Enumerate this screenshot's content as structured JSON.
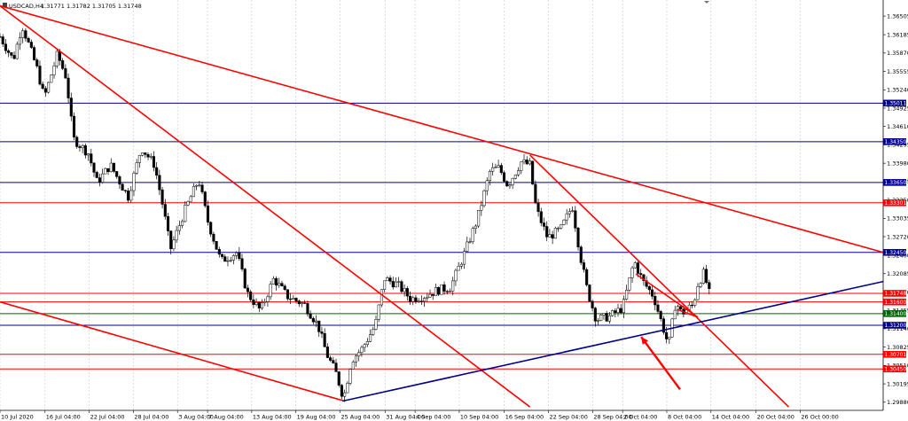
{
  "window": {
    "title": "USDCAD,H4",
    "quote": "1.31771 1.31782 1.31705 1.31748"
  },
  "chart_data": {
    "type": "candlestick",
    "symbol": "USDCAD",
    "timeframe": "H4",
    "ylim": [
      1.2974,
      1.3678
    ],
    "y_ticks": [
      "1.36505",
      "1.36185",
      "1.35870",
      "1.35555",
      "1.35240",
      "1.34925",
      "1.34610",
      "1.34295",
      "1.33980",
      "1.33665",
      "1.33350",
      "1.33035",
      "1.32720",
      "1.32400",
      "1.32085",
      "1.31770",
      "1.31455",
      "1.31140",
      "1.30825",
      "1.30510",
      "1.30195",
      "1.29880"
    ],
    "x_ticks": [
      {
        "label": "10 Jul 2020",
        "pos": 0.0
      },
      {
        "label": "16 Jul 04:00",
        "pos": 0.051
      },
      {
        "label": "22 Jul 04:00",
        "pos": 0.101
      },
      {
        "label": "28 Jul 04:00",
        "pos": 0.151
      },
      {
        "label": "3 Aug 04:00",
        "pos": 0.201
      },
      {
        "label": "7 Aug 04:00",
        "pos": 0.235
      },
      {
        "label": "13 Aug 04:00",
        "pos": 0.285
      },
      {
        "label": "19 Aug 04:00",
        "pos": 0.335
      },
      {
        "label": "25 Aug 04:00",
        "pos": 0.385
      },
      {
        "label": "31 Aug 04:00",
        "pos": 0.436
      },
      {
        "label": "4 Sep 04:00",
        "pos": 0.47
      },
      {
        "label": "10 Sep 04:00",
        "pos": 0.52
      },
      {
        "label": "16 Sep 04:00",
        "pos": 0.571
      },
      {
        "label": "22 Sep 04:00",
        "pos": 0.621
      },
      {
        "label": "28 Sep 04:00",
        "pos": 0.671
      },
      {
        "label": "2 Oct 04:00",
        "pos": 0.705
      },
      {
        "label": "8 Oct 04:00",
        "pos": 0.755
      },
      {
        "label": "14 Oct 04:00",
        "pos": 0.805
      },
      {
        "label": "20 Oct 04:00",
        "pos": 0.856
      },
      {
        "label": "26 Oct 00:00",
        "pos": 0.906
      }
    ],
    "horizontal_levels": [
      {
        "value": 1.35011,
        "label": "1.35011",
        "color": "#00008b"
      },
      {
        "value": 1.3435,
        "label": "1.34350",
        "color": "#00008b"
      },
      {
        "value": 1.3365,
        "label": "1.33650",
        "color": "#00008b"
      },
      {
        "value": 1.33301,
        "label": "1.33301",
        "color": "#ff0000"
      },
      {
        "value": 1.3245,
        "label": "1.32450",
        "color": "#00008b"
      },
      {
        "value": 1.31748,
        "label": "1.31748",
        "color": "#ff0000"
      },
      {
        "value": 1.316,
        "label": "1.31600",
        "color": "#ff0000"
      },
      {
        "value": 1.314,
        "label": "1.31400",
        "color": "#006400"
      },
      {
        "value": 1.312,
        "label": "1.31200",
        "color": "#00008b"
      },
      {
        "value": 1.30701,
        "label": "1.30701",
        "color": "#ff0000"
      },
      {
        "value": 1.3045,
        "label": "1.30450",
        "color": "#ff0000"
      }
    ],
    "trend_lines": [
      {
        "color": "#ff0000",
        "from": {
          "x": 0.0,
          "y": 1.3668
        },
        "to": {
          "x": 1.0,
          "y": 1.3245
        }
      },
      {
        "color": "#ff0000",
        "from": {
          "x": 0.0,
          "y": 1.3668
        },
        "to": {
          "x": 0.6,
          "y": 1.298
        }
      },
      {
        "color": "#ff0000",
        "from": {
          "x": 0.0,
          "y": 1.316
        },
        "to": {
          "x": 0.39,
          "y": 1.299
        }
      },
      {
        "color": "#ff0000",
        "from": {
          "x": 0.6,
          "y": 1.3412
        },
        "to": {
          "x": 0.893,
          "y": 1.298
        }
      },
      {
        "color": "#00008b",
        "from": {
          "x": 0.388,
          "y": 1.299
        },
        "to": {
          "x": 1.0,
          "y": 1.3195
        }
      },
      {
        "color": "#ff0000",
        "from": {
          "x": 0.72,
          "y": 1.3208
        },
        "to": {
          "x": 0.79,
          "y": 1.3134
        }
      },
      {
        "color": "#ff0000",
        "from": {
          "x": 0.767,
          "y": 1.3147
        },
        "to": {
          "x": 0.79,
          "y": 1.3134
        }
      }
    ],
    "arrow": {
      "color": "#ff0000",
      "from": {
        "x": 0.77,
        "y": 1.301
      },
      "to": {
        "x": 0.726,
        "y": 1.31
      }
    },
    "anchors": [
      {
        "x": 0.0,
        "y": 1.3615
      },
      {
        "x": 0.015,
        "y": 1.3575
      },
      {
        "x": 0.025,
        "y": 1.3635
      },
      {
        "x": 0.042,
        "y": 1.356
      },
      {
        "x": 0.05,
        "y": 1.351
      },
      {
        "x": 0.065,
        "y": 1.3585
      },
      {
        "x": 0.075,
        "y": 1.3545
      },
      {
        "x": 0.083,
        "y": 1.344
      },
      {
        "x": 0.1,
        "y": 1.3415
      },
      {
        "x": 0.11,
        "y": 1.3365
      },
      {
        "x": 0.125,
        "y": 1.3395
      },
      {
        "x": 0.145,
        "y": 1.334
      },
      {
        "x": 0.16,
        "y": 1.3425
      },
      {
        "x": 0.175,
        "y": 1.3395
      },
      {
        "x": 0.185,
        "y": 1.332
      },
      {
        "x": 0.193,
        "y": 1.325
      },
      {
        "x": 0.21,
        "y": 1.332
      },
      {
        "x": 0.225,
        "y": 1.337
      },
      {
        "x": 0.235,
        "y": 1.33
      },
      {
        "x": 0.25,
        "y": 1.323
      },
      {
        "x": 0.268,
        "y": 1.3245
      },
      {
        "x": 0.28,
        "y": 1.3175
      },
      {
        "x": 0.295,
        "y": 1.3145
      },
      {
        "x": 0.31,
        "y": 1.32
      },
      {
        "x": 0.325,
        "y": 1.317
      },
      {
        "x": 0.345,
        "y": 1.3155
      },
      {
        "x": 0.36,
        "y": 1.312
      },
      {
        "x": 0.37,
        "y": 1.307
      },
      {
        "x": 0.38,
        "y": 1.304
      },
      {
        "x": 0.389,
        "y": 1.2995
      },
      {
        "x": 0.398,
        "y": 1.306
      },
      {
        "x": 0.41,
        "y": 1.308
      },
      {
        "x": 0.425,
        "y": 1.312
      },
      {
        "x": 0.435,
        "y": 1.32
      },
      {
        "x": 0.45,
        "y": 1.319
      },
      {
        "x": 0.465,
        "y": 1.3165
      },
      {
        "x": 0.48,
        "y": 1.317
      },
      {
        "x": 0.495,
        "y": 1.318
      },
      {
        "x": 0.51,
        "y": 1.3185
      },
      {
        "x": 0.525,
        "y": 1.324
      },
      {
        "x": 0.54,
        "y": 1.33
      },
      {
        "x": 0.555,
        "y": 1.3385
      },
      {
        "x": 0.565,
        "y": 1.339
      },
      {
        "x": 0.575,
        "y": 1.336
      },
      {
        "x": 0.59,
        "y": 1.34
      },
      {
        "x": 0.6,
        "y": 1.3395
      },
      {
        "x": 0.607,
        "y": 1.332
      },
      {
        "x": 0.62,
        "y": 1.327
      },
      {
        "x": 0.635,
        "y": 1.3285
      },
      {
        "x": 0.648,
        "y": 1.3325
      },
      {
        "x": 0.657,
        "y": 1.324
      },
      {
        "x": 0.665,
        "y": 1.318
      },
      {
        "x": 0.675,
        "y": 1.313
      },
      {
        "x": 0.69,
        "y": 1.3135
      },
      {
        "x": 0.705,
        "y": 1.315
      },
      {
        "x": 0.718,
        "y": 1.323
      },
      {
        "x": 0.728,
        "y": 1.3195
      },
      {
        "x": 0.74,
        "y": 1.317
      },
      {
        "x": 0.75,
        "y": 1.312
      },
      {
        "x": 0.757,
        "y": 1.3085
      },
      {
        "x": 0.765,
        "y": 1.316
      },
      {
        "x": 0.772,
        "y": 1.314
      },
      {
        "x": 0.78,
        "y": 1.315
      },
      {
        "x": 0.785,
        "y": 1.3155
      },
      {
        "x": 0.79,
        "y": 1.319
      },
      {
        "x": 0.797,
        "y": 1.321
      },
      {
        "x": 0.803,
        "y": 1.3175
      }
    ]
  }
}
